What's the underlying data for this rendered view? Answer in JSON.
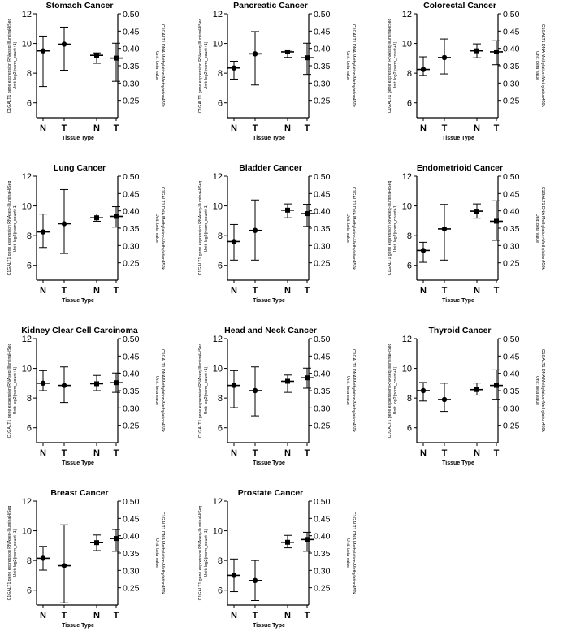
{
  "figure": {
    "panels_count": 11
  },
  "chart_data": [
    {
      "type": "errorbar",
      "title": "Stomach Cancer",
      "xlabel": "Tissue Type",
      "ylabel_left": "C1GALT1 gene expression RNAseq-IlluminaHiSeq\nUnit: log2(norm_count+1)",
      "ylabel_right": "C1GALT1 DNA Methylation-Methylation450k\nUnit: beta value",
      "categories": [
        "N",
        "T",
        "N",
        "T"
      ],
      "left_axis": {
        "ylim": [
          5,
          12
        ],
        "ticks": [
          6,
          8,
          10,
          12
        ]
      },
      "right_axis": {
        "ylim": [
          0.2,
          0.5
        ],
        "ticks": [
          "0.25",
          "0.30",
          "0.35",
          "0.40",
          "0.45",
          "0.50"
        ]
      },
      "series": [
        {
          "axis": "left",
          "points": [
            {
              "category": "N",
              "mean": 9.5,
              "low": 7.1,
              "high": 10.5
            },
            {
              "category": "T",
              "mean": 9.95,
              "low": 8.2,
              "high": 11.1
            }
          ]
        },
        {
          "axis": "right",
          "points": [
            {
              "category": "N",
              "mean": 0.38,
              "low": 0.357,
              "high": 0.387
            },
            {
              "category": "T",
              "mean": 0.372,
              "low": 0.305,
              "high": 0.415
            }
          ]
        }
      ]
    },
    {
      "type": "errorbar",
      "title": "Pancreatic Cancer",
      "xlabel": "Tissue Type",
      "ylabel_left": "C1GALT1 gene expression RNAseq-IlluminaHiSeq\nUnit: log2(norm_count+1)",
      "ylabel_right": "C1GALT1 DNA Methylation-Methylation450k\nUnit: beta value",
      "categories": [
        "N",
        "T",
        "N",
        "T"
      ],
      "left_axis": {
        "ylim": [
          5,
          12
        ],
        "ticks": [
          6,
          8,
          10,
          12
        ]
      },
      "right_axis": {
        "ylim": [
          0.2,
          0.5
        ],
        "ticks": [
          "0.25",
          "0.30",
          "0.35",
          "0.40",
          "0.45",
          "0.50"
        ]
      },
      "series": [
        {
          "axis": "left",
          "points": [
            {
              "category": "N",
              "mean": 8.35,
              "low": 7.6,
              "high": 8.8
            },
            {
              "category": "T",
              "mean": 9.3,
              "low": 7.2,
              "high": 10.8
            }
          ]
        },
        {
          "axis": "right",
          "points": [
            {
              "category": "N",
              "mean": 0.39,
              "low": 0.374,
              "high": 0.395
            },
            {
              "category": "T",
              "mean": 0.373,
              "low": 0.325,
              "high": 0.415
            }
          ]
        }
      ]
    },
    {
      "type": "errorbar",
      "title": "Colorectal Cancer",
      "xlabel": "Tissue Type",
      "ylabel_left": "C1GALT1 gene expression RNAseq-IlluminaHiSeq\nUnit: log2(norm_count+1)",
      "ylabel_right": "C1GALT1 DNA Methylation-Methylation450k\nUnit: beta value",
      "categories": [
        "N",
        "T",
        "N",
        "T"
      ],
      "left_axis": {
        "ylim": [
          5,
          12
        ],
        "ticks": [
          6,
          8,
          10,
          12
        ]
      },
      "right_axis": {
        "ylim": [
          0.2,
          0.5
        ],
        "ticks": [
          "0.25",
          "0.30",
          "0.35",
          "0.40",
          "0.45",
          "0.50"
        ]
      },
      "series": [
        {
          "axis": "left",
          "points": [
            {
              "category": "N",
              "mean": 8.25,
              "low": 7.85,
              "high": 9.1
            },
            {
              "category": "T",
              "mean": 9.05,
              "low": 7.95,
              "high": 10.3
            }
          ]
        },
        {
          "axis": "right",
          "points": [
            {
              "category": "N",
              "mean": 0.393,
              "low": 0.373,
              "high": 0.413
            },
            {
              "category": "T",
              "mean": 0.39,
              "low": 0.353,
              "high": 0.422
            }
          ]
        }
      ]
    },
    {
      "type": "errorbar",
      "title": "Lung Cancer",
      "xlabel": "Tissue Type",
      "ylabel_left": "C1GALT1 gene expression RNAseq-IlluminaHiSeq\nUnit: log2(norm_count+1)",
      "ylabel_right": "C1GALT1 DNA Methylation-Methylation450k\nUnit: beta value",
      "categories": [
        "N",
        "T",
        "N",
        "T"
      ],
      "left_axis": {
        "ylim": [
          5,
          12
        ],
        "ticks": [
          6,
          8,
          10,
          12
        ]
      },
      "right_axis": {
        "ylim": [
          0.2,
          0.5
        ],
        "ticks": [
          "0.25",
          "0.30",
          "0.35",
          "0.40",
          "0.45",
          "0.50"
        ]
      },
      "series": [
        {
          "axis": "left",
          "points": [
            {
              "category": "N",
              "mean": 8.25,
              "low": 7.2,
              "high": 9.45
            },
            {
              "category": "T",
              "mean": 8.8,
              "low": 6.8,
              "high": 11.1
            }
          ]
        },
        {
          "axis": "right",
          "points": [
            {
              "category": "N",
              "mean": 0.38,
              "low": 0.37,
              "high": 0.391
            },
            {
              "category": "T",
              "mean": 0.384,
              "low": 0.353,
              "high": 0.412
            }
          ]
        }
      ]
    },
    {
      "type": "errorbar",
      "title": "Bladder Cancer",
      "xlabel": "Tissue Type",
      "ylabel_left": "C1GALT1 gene expression RNAseq-IlluminaHiSeq\nUnit: log2(norm_count+1)",
      "ylabel_right": "C1GALT1 DNA Methylation-Methylation450k\nUnit: beta value",
      "categories": [
        "N",
        "T",
        "N",
        "T"
      ],
      "left_axis": {
        "ylim": [
          5,
          12
        ],
        "ticks": [
          6,
          8,
          10,
          12
        ]
      },
      "right_axis": {
        "ylim": [
          0.2,
          0.5
        ],
        "ticks": [
          "0.25",
          "0.30",
          "0.35",
          "0.40",
          "0.45",
          "0.50"
        ]
      },
      "series": [
        {
          "axis": "left",
          "points": [
            {
              "category": "N",
              "mean": 7.6,
              "low": 6.35,
              "high": 8.75
            },
            {
              "category": "T",
              "mean": 8.35,
              "low": 6.35,
              "high": 10.4
            }
          ]
        },
        {
          "axis": "right",
          "points": [
            {
              "category": "N",
              "mean": 0.402,
              "low": 0.38,
              "high": 0.42
            },
            {
              "category": "T",
              "mean": 0.392,
              "low": 0.355,
              "high": 0.419
            }
          ]
        }
      ]
    },
    {
      "type": "errorbar",
      "title": "Endometrioid Cancer",
      "xlabel": "Tissue Type",
      "ylabel_left": "C1GALT1 gene expression RNAseq-IlluminaHiSeq\nUnit: log2(norm_count+1)",
      "ylabel_right": "C1GALT1 DNA Methylation-Methylation450k\nUnit: beta value",
      "categories": [
        "N",
        "T",
        "N",
        "T"
      ],
      "left_axis": {
        "ylim": [
          5,
          12
        ],
        "ticks": [
          6,
          8,
          10,
          12
        ]
      },
      "right_axis": {
        "ylim": [
          0.2,
          0.5
        ],
        "ticks": [
          "0.25",
          "0.30",
          "0.35",
          "0.40",
          "0.45",
          "0.50"
        ]
      },
      "series": [
        {
          "axis": "left",
          "points": [
            {
              "category": "N",
              "mean": 7.0,
              "low": 6.2,
              "high": 7.55
            },
            {
              "category": "T",
              "mean": 8.45,
              "low": 6.35,
              "high": 10.1
            }
          ]
        },
        {
          "axis": "right",
          "points": [
            {
              "category": "N",
              "mean": 0.399,
              "low": 0.379,
              "high": 0.42
            },
            {
              "category": "T",
              "mean": 0.37,
              "low": 0.315,
              "high": 0.429
            }
          ]
        }
      ]
    },
    {
      "type": "errorbar",
      "title": "Kidney Clear Cell Carcinoma",
      "xlabel": "Tissue Type",
      "ylabel_left": "C1GALT1 gene expression RNAseq-IlluminaHiSeq\nUnit: log2(norm_count+1)",
      "ylabel_right": "C1GALT1 DNA Methylation-Methylation450k\nUnit: beta value",
      "categories": [
        "N",
        "T",
        "N",
        "T"
      ],
      "left_axis": {
        "ylim": [
          5,
          12
        ],
        "ticks": [
          6,
          8,
          10,
          12
        ]
      },
      "right_axis": {
        "ylim": [
          0.2,
          0.5
        ],
        "ticks": [
          "0.25",
          "0.30",
          "0.35",
          "0.40",
          "0.45",
          "0.50"
        ]
      },
      "series": [
        {
          "axis": "left",
          "points": [
            {
              "category": "N",
              "mean": 9.0,
              "low": 8.5,
              "high": 9.85
            },
            {
              "category": "T",
              "mean": 8.85,
              "low": 7.7,
              "high": 10.1
            }
          ]
        },
        {
          "axis": "right",
          "points": [
            {
              "category": "N",
              "mean": 0.37,
              "low": 0.35,
              "high": 0.394
            },
            {
              "category": "T",
              "mean": 0.373,
              "low": 0.345,
              "high": 0.401
            }
          ]
        }
      ]
    },
    {
      "type": "errorbar",
      "title": "Head and Neck Cancer",
      "xlabel": "Tissue Type",
      "ylabel_left": "C1GALT1 gene expression RNAseq-IlluminaHiSeq\nUnit: log2(norm_count+1)",
      "ylabel_right": "C1GALT1 DNA Methylation-Methylation450k\nUnit: beta value",
      "categories": [
        "N",
        "T",
        "N",
        "T"
      ],
      "left_axis": {
        "ylim": [
          5,
          12
        ],
        "ticks": [
          6,
          8,
          10,
          12
        ]
      },
      "right_axis": {
        "ylim": [
          0.2,
          0.5
        ],
        "ticks": [
          "0.25",
          "0.30",
          "0.35",
          "0.40",
          "0.45",
          "0.50"
        ]
      },
      "series": [
        {
          "axis": "left",
          "points": [
            {
              "category": "N",
              "mean": 8.85,
              "low": 7.35,
              "high": 9.85
            },
            {
              "category": "T",
              "mean": 8.5,
              "low": 6.8,
              "high": 10.1
            }
          ]
        },
        {
          "axis": "right",
          "points": [
            {
              "category": "N",
              "mean": 0.377,
              "low": 0.345,
              "high": 0.395
            },
            {
              "category": "T",
              "mean": 0.387,
              "low": 0.357,
              "high": 0.415
            }
          ]
        }
      ]
    },
    {
      "type": "errorbar",
      "title": "Thyroid Cancer",
      "xlabel": "Tissue Type",
      "ylabel_left": "C1GALT1 gene expression RNAseq-IlluminaHiSeq\nUnit: log2(norm_count+1)",
      "ylabel_right": "C1GALT1 DNA Methylation-Methylation450k\nUnit: beta value",
      "categories": [
        "N",
        "T",
        "N",
        "T"
      ],
      "left_axis": {
        "ylim": [
          5,
          12
        ],
        "ticks": [
          6,
          8,
          10,
          12
        ]
      },
      "right_axis": {
        "ylim": [
          0.2,
          0.5
        ],
        "ticks": [
          "0.25",
          "0.30",
          "0.35",
          "0.40",
          "0.45",
          "0.50"
        ]
      },
      "series": [
        {
          "axis": "left",
          "points": [
            {
              "category": "N",
              "mean": 8.5,
              "low": 7.8,
              "high": 9.05
            },
            {
              "category": "T",
              "mean": 7.9,
              "low": 7.1,
              "high": 9.0
            }
          ]
        },
        {
          "axis": "right",
          "points": [
            {
              "category": "N",
              "mean": 0.353,
              "low": 0.337,
              "high": 0.372
            },
            {
              "category": "T",
              "mean": 0.365,
              "low": 0.325,
              "high": 0.41
            }
          ]
        }
      ]
    },
    {
      "type": "errorbar",
      "title": "Breast Cancer",
      "xlabel": "Tissue Type",
      "ylabel_left": "C1GALT1 gene expression RNAseq-IlluminaHiSeq\nUnit: log2(norm_count+1)",
      "ylabel_right": "C1GALT1 DNA Methylation-Methylation450k\nUnit: beta value",
      "categories": [
        "N",
        "T",
        "N",
        "T"
      ],
      "left_axis": {
        "ylim": [
          5,
          12
        ],
        "ticks": [
          6,
          8,
          10,
          12
        ]
      },
      "right_axis": {
        "ylim": [
          0.2,
          0.5
        ],
        "ticks": [
          "0.25",
          "0.30",
          "0.35",
          "0.40",
          "0.45",
          "0.50"
        ]
      },
      "series": [
        {
          "axis": "left",
          "points": [
            {
              "category": "N",
              "mean": 8.15,
              "low": 7.35,
              "high": 8.95
            },
            {
              "category": "T",
              "mean": 7.65,
              "low": 5.15,
              "high": 10.4
            }
          ]
        },
        {
          "axis": "right",
          "points": [
            {
              "category": "N",
              "mean": 0.38,
              "low": 0.357,
              "high": 0.402
            },
            {
              "category": "T",
              "mean": 0.392,
              "low": 0.355,
              "high": 0.418
            }
          ]
        }
      ]
    },
    {
      "type": "errorbar",
      "title": "Prostate Cancer",
      "xlabel": "Tissue Type",
      "ylabel_left": "C1GALT1 gene expression RNAseq-IlluminaHiSeq\nUnit: log2(norm_count+1)",
      "ylabel_right": "C1GALT1 DNA Methylation-Methylation450k\nUnit: beta value",
      "categories": [
        "N",
        "T",
        "N",
        "T"
      ],
      "left_axis": {
        "ylim": [
          5,
          12
        ],
        "ticks": [
          6,
          8,
          10,
          12
        ]
      },
      "right_axis": {
        "ylim": [
          0.2,
          0.5
        ],
        "ticks": [
          "0.25",
          "0.30",
          "0.35",
          "0.40",
          "0.45",
          "0.50"
        ]
      },
      "series": [
        {
          "axis": "left",
          "points": [
            {
              "category": "N",
              "mean": 7.0,
              "low": 5.9,
              "high": 8.1
            },
            {
              "category": "T",
              "mean": 6.65,
              "low": 5.3,
              "high": 8.0
            }
          ]
        },
        {
          "axis": "right",
          "points": [
            {
              "category": "N",
              "mean": 0.381,
              "low": 0.365,
              "high": 0.401
            },
            {
              "category": "T",
              "mean": 0.389,
              "low": 0.355,
              "high": 0.41
            }
          ]
        }
      ]
    }
  ]
}
